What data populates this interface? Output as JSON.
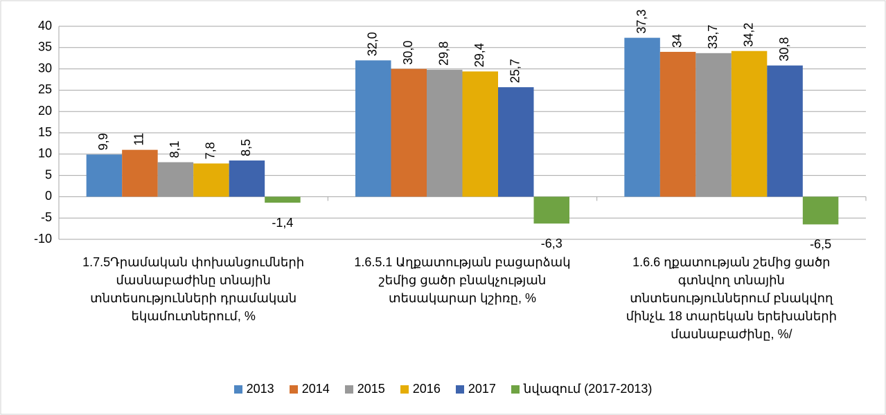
{
  "chart_data": {
    "type": "bar",
    "categories": [
      "1.7.5Դրամական փոխանցումների մասնաբաժինը տնային տնտեսությունների դրամական եկամուտներում, %",
      "1.6.5.1 Աղքատության բացարձակ շեմից ցածր բնակչության տեսակարար կշիռը, %",
      "1.6.6 ղքատության շեմից ցածր գտնվող տնային տնտեսություններում բնակվող մինչև 18 տարեկան երեխաների մասնաբաժինը, %/"
    ],
    "series": [
      {
        "name": "2013",
        "color": "#4f87c3",
        "values": [
          9.9,
          32.0,
          37.3
        ],
        "value_labels": [
          "9,9",
          "32,0",
          "37,3"
        ]
      },
      {
        "name": "2014",
        "color": "#d5702c",
        "values": [
          11,
          30.0,
          34
        ],
        "value_labels": [
          "11",
          "30,0",
          "34"
        ]
      },
      {
        "name": "2015",
        "color": "#999999",
        "values": [
          8.1,
          29.8,
          33.7
        ],
        "value_labels": [
          "8,1",
          "29,8",
          "33,7"
        ]
      },
      {
        "name": "2016",
        "color": "#e5ad06",
        "values": [
          7.8,
          29.4,
          34.2
        ],
        "value_labels": [
          "7,8",
          "29,4",
          "34,2"
        ]
      },
      {
        "name": "2017",
        "color": "#3e64ad",
        "values": [
          8.5,
          25.7,
          30.8
        ],
        "value_labels": [
          "8,5",
          "25,7",
          "30,8"
        ]
      },
      {
        "name": "նվազում (2017-2013)",
        "color": "#6fa343",
        "values": [
          -1.4,
          -6.3,
          -6.5
        ],
        "value_labels": [
          "-1,4",
          "-6,3",
          "-6,5"
        ]
      }
    ],
    "ylim": [
      -10,
      40
    ],
    "yticks": [
      -10,
      -5,
      0,
      5,
      10,
      15,
      20,
      25,
      30,
      35,
      40
    ],
    "grid": true,
    "legend": "bottom"
  }
}
